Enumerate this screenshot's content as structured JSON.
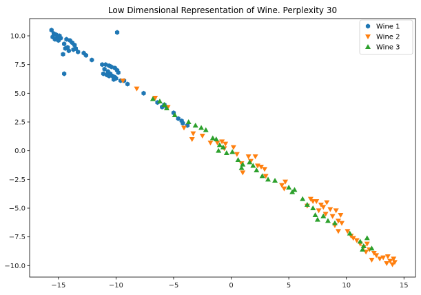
{
  "chart_data": {
    "type": "scatter",
    "title": "Low Dimensional Representation of Wine. Perplexity 30",
    "xlabel": "",
    "ylabel": "",
    "xlim": [
      -17.5,
      16.0
    ],
    "ylim": [
      -11.0,
      11.5
    ],
    "xticks": [
      -15,
      -10,
      -5,
      0,
      5,
      10,
      15
    ],
    "yticks": [
      -10.0,
      -7.5,
      -5.0,
      -2.5,
      0.0,
      2.5,
      5.0,
      7.5,
      10.0
    ],
    "grid": false,
    "legend": "top-right",
    "series": [
      {
        "name": "Wine 1",
        "marker": "hexagon",
        "color": "#1f77b4",
        "points": [
          [
            -15.6,
            10.5
          ],
          [
            -15.4,
            10.2
          ],
          [
            -15.5,
            9.9
          ],
          [
            -15.2,
            10.1
          ],
          [
            -15.1,
            9.8
          ],
          [
            -15.3,
            9.7
          ],
          [
            -14.9,
            10.0
          ],
          [
            -15.0,
            9.6
          ],
          [
            -14.8,
            9.8
          ],
          [
            -14.5,
            9.3
          ],
          [
            -14.3,
            9.7
          ],
          [
            -14.0,
            9.6
          ],
          [
            -13.8,
            9.4
          ],
          [
            -13.6,
            9.2
          ],
          [
            -13.5,
            8.9
          ],
          [
            -14.2,
            9.0
          ],
          [
            -14.4,
            8.9
          ],
          [
            -14.1,
            8.7
          ],
          [
            -13.7,
            8.8
          ],
          [
            -14.6,
            8.4
          ],
          [
            -14.5,
            6.7
          ],
          [
            -13.3,
            8.6
          ],
          [
            -12.8,
            8.5
          ],
          [
            -12.6,
            8.3
          ],
          [
            -12.1,
            7.9
          ],
          [
            -11.2,
            7.5
          ],
          [
            -10.9,
            7.5
          ],
          [
            -10.6,
            7.4
          ],
          [
            -10.4,
            7.3
          ],
          [
            -10.1,
            7.2
          ],
          [
            -9.9,
            7.0
          ],
          [
            -9.8,
            6.8
          ],
          [
            -11.0,
            7.1
          ],
          [
            -10.7,
            6.9
          ],
          [
            -10.5,
            6.7
          ],
          [
            -10.3,
            6.5
          ],
          [
            -10.1,
            6.4
          ],
          [
            -10.0,
            6.3
          ],
          [
            -11.1,
            6.7
          ],
          [
            -10.8,
            6.6
          ],
          [
            -10.6,
            6.5
          ],
          [
            -10.2,
            6.2
          ],
          [
            -9.6,
            6.1
          ],
          [
            -9.0,
            5.8
          ],
          [
            -7.6,
            5.0
          ],
          [
            -6.4,
            4.2
          ],
          [
            -5.6,
            3.8
          ],
          [
            -6.0,
            3.8
          ],
          [
            -5.8,
            4.0
          ],
          [
            -5.0,
            3.3
          ],
          [
            -4.6,
            2.8
          ],
          [
            -4.3,
            2.6
          ],
          [
            -4.2,
            2.4
          ],
          [
            -3.8,
            2.2
          ],
          [
            -9.9,
            10.3
          ],
          [
            -9.3,
            6.1
          ]
        ]
      },
      {
        "name": "Wine 2",
        "marker": "triangle-down",
        "color": "#ff7f0e",
        "points": [
          [
            -9.4,
            6.1
          ],
          [
            -8.2,
            5.4
          ],
          [
            -6.6,
            4.6
          ],
          [
            -5.5,
            3.8
          ],
          [
            -4.1,
            2.0
          ],
          [
            -3.3,
            1.5
          ],
          [
            -3.4,
            1.0
          ],
          [
            -2.5,
            1.3
          ],
          [
            -1.8,
            0.7
          ],
          [
            -1.2,
            0.7
          ],
          [
            -0.8,
            0.8
          ],
          [
            -0.5,
            0.6
          ],
          [
            -0.6,
            0.2
          ],
          [
            0.2,
            0.3
          ],
          [
            0.5,
            -0.3
          ],
          [
            0.9,
            -1.1
          ],
          [
            1.0,
            -1.9
          ],
          [
            1.5,
            -0.5
          ],
          [
            1.7,
            -0.9
          ],
          [
            2.1,
            -0.5
          ],
          [
            2.3,
            -1.3
          ],
          [
            2.6,
            -1.4
          ],
          [
            2.9,
            -1.6
          ],
          [
            3.0,
            -2.2
          ],
          [
            4.4,
            -3.0
          ],
          [
            4.6,
            -3.3
          ],
          [
            4.7,
            -2.7
          ],
          [
            6.6,
            -4.8
          ],
          [
            6.9,
            -4.2
          ],
          [
            7.1,
            -4.4
          ],
          [
            7.4,
            -4.4
          ],
          [
            7.6,
            -5.2
          ],
          [
            7.8,
            -4.7
          ],
          [
            8.0,
            -4.9
          ],
          [
            8.2,
            -5.5
          ],
          [
            8.3,
            -4.5
          ],
          [
            8.6,
            -5.1
          ],
          [
            8.8,
            -5.7
          ],
          [
            9.1,
            -5.2
          ],
          [
            9.3,
            -6.1
          ],
          [
            9.5,
            -5.6
          ],
          [
            9.6,
            -6.3
          ],
          [
            9.0,
            -6.5
          ],
          [
            9.3,
            -7.0
          ],
          [
            10.1,
            -7.0
          ],
          [
            10.4,
            -7.4
          ],
          [
            10.6,
            -7.6
          ],
          [
            10.9,
            -7.8
          ],
          [
            11.2,
            -8.1
          ],
          [
            11.5,
            -8.4
          ],
          [
            11.8,
            -8.1
          ],
          [
            12.0,
            -8.6
          ],
          [
            12.4,
            -8.9
          ],
          [
            12.6,
            -9.1
          ],
          [
            12.9,
            -9.4
          ],
          [
            13.2,
            -9.3
          ],
          [
            13.5,
            -9.8
          ],
          [
            13.8,
            -9.6
          ],
          [
            14.0,
            -9.9
          ],
          [
            14.2,
            -9.7
          ],
          [
            12.2,
            -9.5
          ],
          [
            13.6,
            -9.2
          ],
          [
            11.7,
            -8.8
          ],
          [
            14.1,
            -9.4
          ]
        ]
      },
      {
        "name": "Wine 3",
        "marker": "triangle-up",
        "color": "#2ca02c",
        "points": [
          [
            -6.8,
            4.5
          ],
          [
            -6.2,
            4.3
          ],
          [
            -5.8,
            4.0
          ],
          [
            -5.6,
            3.7
          ],
          [
            -4.9,
            3.1
          ],
          [
            -3.7,
            2.5
          ],
          [
            -3.1,
            2.2
          ],
          [
            -2.6,
            2.0
          ],
          [
            -2.2,
            1.8
          ],
          [
            -1.6,
            1.1
          ],
          [
            -1.3,
            1.0
          ],
          [
            -1.0,
            0.5
          ],
          [
            -0.7,
            0.3
          ],
          [
            -1.1,
            0.0
          ],
          [
            -0.4,
            -0.2
          ],
          [
            0.1,
            -0.1
          ],
          [
            0.6,
            -0.8
          ],
          [
            1.0,
            -1.2
          ],
          [
            0.9,
            -1.5
          ],
          [
            1.6,
            -1.0
          ],
          [
            1.9,
            -1.3
          ],
          [
            2.2,
            -1.7
          ],
          [
            2.7,
            -2.2
          ],
          [
            3.2,
            -2.5
          ],
          [
            3.8,
            -2.6
          ],
          [
            5.0,
            -3.2
          ],
          [
            5.3,
            -3.6
          ],
          [
            5.5,
            -3.4
          ],
          [
            6.2,
            -4.2
          ],
          [
            6.6,
            -4.7
          ],
          [
            7.1,
            -5.0
          ],
          [
            7.3,
            -5.6
          ],
          [
            7.5,
            -6.0
          ],
          [
            8.0,
            -5.7
          ],
          [
            8.4,
            -6.1
          ],
          [
            9.0,
            -6.3
          ],
          [
            10.3,
            -7.2
          ],
          [
            11.2,
            -7.9
          ],
          [
            11.5,
            -8.3
          ],
          [
            11.8,
            -7.6
          ],
          [
            12.2,
            -8.5
          ],
          [
            11.4,
            -8.6
          ]
        ]
      }
    ]
  }
}
